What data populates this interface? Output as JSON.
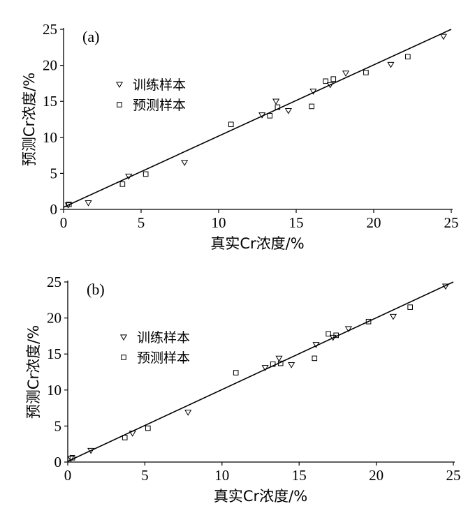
{
  "chart_data": [
    {
      "type": "scatter",
      "panel_label": "(a)",
      "xlabel": "真实Cr浓度/%",
      "ylabel": "预测Cr浓度/%",
      "xlim": [
        0,
        25
      ],
      "ylim": [
        0,
        25
      ],
      "xticks": [
        "0",
        "5",
        "10",
        "15",
        "20",
        "25"
      ],
      "yticks": [
        "0",
        "5",
        "10",
        "15",
        "20",
        "25"
      ],
      "legend_position": "upper-left",
      "series": [
        {
          "name": "训练样本",
          "marker": "triangle-down",
          "points": [
            [
              0.3,
              0.6
            ],
            [
              1.6,
              0.9
            ],
            [
              4.2,
              4.6
            ],
            [
              7.8,
              6.5
            ],
            [
              12.8,
              13.1
            ],
            [
              13.7,
              15.0
            ],
            [
              14.5,
              13.7
            ],
            [
              16.1,
              16.4
            ],
            [
              17.2,
              17.3
            ],
            [
              18.2,
              18.9
            ],
            [
              21.1,
              20.1
            ],
            [
              24.5,
              24.0
            ]
          ]
        },
        {
          "name": "预测样本",
          "marker": "square",
          "points": [
            [
              0.35,
              0.7
            ],
            [
              3.8,
              3.5
            ],
            [
              5.3,
              4.9
            ],
            [
              10.8,
              11.8
            ],
            [
              13.3,
              13.0
            ],
            [
              13.8,
              14.2
            ],
            [
              16.0,
              14.3
            ],
            [
              16.9,
              17.8
            ],
            [
              17.4,
              18.1
            ],
            [
              19.5,
              19.0
            ],
            [
              22.2,
              21.2
            ]
          ]
        }
      ],
      "fit_line": [
        [
          0,
          0.3
        ],
        [
          25,
          25.0
        ]
      ]
    },
    {
      "type": "scatter",
      "panel_label": "(b)",
      "xlabel": "真实Cr浓度/%",
      "ylabel": "预测Cr浓度/%",
      "xlim": [
        0,
        25
      ],
      "ylim": [
        0,
        25
      ],
      "xticks": [
        "0",
        "5",
        "10",
        "15",
        "20",
        "25"
      ],
      "yticks": [
        "0",
        "5",
        "10",
        "15",
        "20",
        "25"
      ],
      "legend_position": "upper-left",
      "series": [
        {
          "name": "训练样本",
          "marker": "triangle-down",
          "points": [
            [
              0.2,
              0.5
            ],
            [
              1.5,
              1.6
            ],
            [
              4.2,
              4.0
            ],
            [
              7.8,
              6.9
            ],
            [
              12.8,
              13.1
            ],
            [
              13.7,
              14.4
            ],
            [
              14.5,
              13.5
            ],
            [
              16.1,
              16.3
            ],
            [
              17.2,
              17.3
            ],
            [
              18.2,
              18.5
            ],
            [
              21.1,
              20.2
            ],
            [
              24.5,
              24.4
            ]
          ]
        },
        {
          "name": "预测样本",
          "marker": "square",
          "points": [
            [
              0.3,
              0.6
            ],
            [
              3.7,
              3.4
            ],
            [
              5.2,
              4.7
            ],
            [
              10.9,
              12.4
            ],
            [
              13.3,
              13.6
            ],
            [
              13.8,
              13.7
            ],
            [
              16.0,
              14.4
            ],
            [
              16.9,
              17.8
            ],
            [
              17.4,
              17.6
            ],
            [
              19.5,
              19.5
            ],
            [
              22.2,
              21.5
            ]
          ]
        }
      ],
      "fit_line": [
        [
          0,
          0.1
        ],
        [
          25,
          25.0
        ]
      ]
    }
  ]
}
